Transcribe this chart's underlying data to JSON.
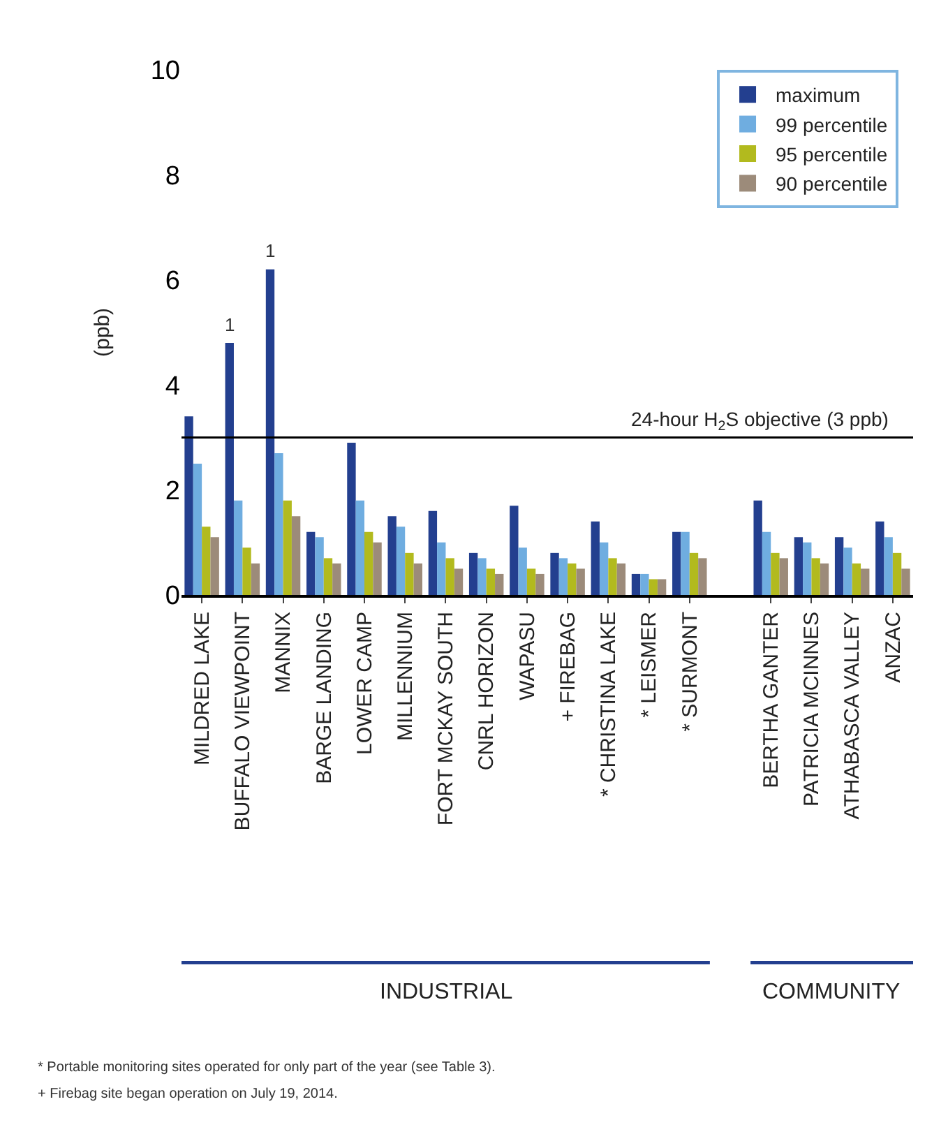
{
  "chart_data": {
    "type": "bar",
    "ylabel": "(ppb)",
    "categories": [
      "MILDRED LAKE",
      "BUFFALO VIEWPOINT",
      "MANNIX",
      "BARGE LANDING",
      "LOWER CAMP",
      "MILLENNIUM",
      "FORT MCKAY SOUTH",
      "CNRL HORIZON",
      "WAPASU",
      "+ FIREBAG",
      "* CHRISTINA LAKE",
      "* LEISMER",
      "* SURMONT",
      null,
      "BERTHA GANTER",
      "PATRICIA MCINNES",
      "ATHABASCA VALLEY",
      "ANZAC"
    ],
    "series": [
      {
        "name": "maximum",
        "color": "#233f8f",
        "values": [
          3.4,
          4.8,
          6.2,
          1.2,
          2.9,
          1.5,
          1.6,
          0.8,
          1.7,
          0.8,
          1.4,
          0.4,
          1.2,
          null,
          1.8,
          1.1,
          1.1,
          1.4
        ]
      },
      {
        "name": "99 percentile",
        "color": "#6fade0",
        "values": [
          2.5,
          1.8,
          2.7,
          1.1,
          1.8,
          1.3,
          1.0,
          0.7,
          0.9,
          0.7,
          1.0,
          0.4,
          1.2,
          null,
          1.2,
          1.0,
          0.9,
          1.1
        ]
      },
      {
        "name": "95 percentile",
        "color": "#b2ba1e",
        "values": [
          1.3,
          0.9,
          1.8,
          0.7,
          1.2,
          0.8,
          0.7,
          0.5,
          0.5,
          0.6,
          0.7,
          0.3,
          0.8,
          null,
          0.8,
          0.7,
          0.6,
          0.8
        ]
      },
      {
        "name": "90 percentile",
        "color": "#9c8b7a",
        "values": [
          1.1,
          0.6,
          1.5,
          0.6,
          1.0,
          0.6,
          0.5,
          0.4,
          0.4,
          0.5,
          0.6,
          0.3,
          0.7,
          null,
          0.7,
          0.6,
          0.5,
          0.5
        ]
      }
    ],
    "ylim": [
      0,
      10
    ],
    "yticks": [
      0,
      2,
      4,
      6,
      8,
      10
    ],
    "grid": false,
    "legend": "top right",
    "ref_lines": [
      {
        "axis": "y",
        "value": 3,
        "label": "24-hour H$_{2}$S objective (3 ppb)",
        "color": "#000000"
      }
    ],
    "annotations": [
      "1",
      "1",
      "INDUSTRIAL",
      "COMMUNITY",
      "* Portable monitoring sites operated for only part of the year (see Table 3).",
      "+ Firebag site began operation on July 19, 2014."
    ]
  }
}
